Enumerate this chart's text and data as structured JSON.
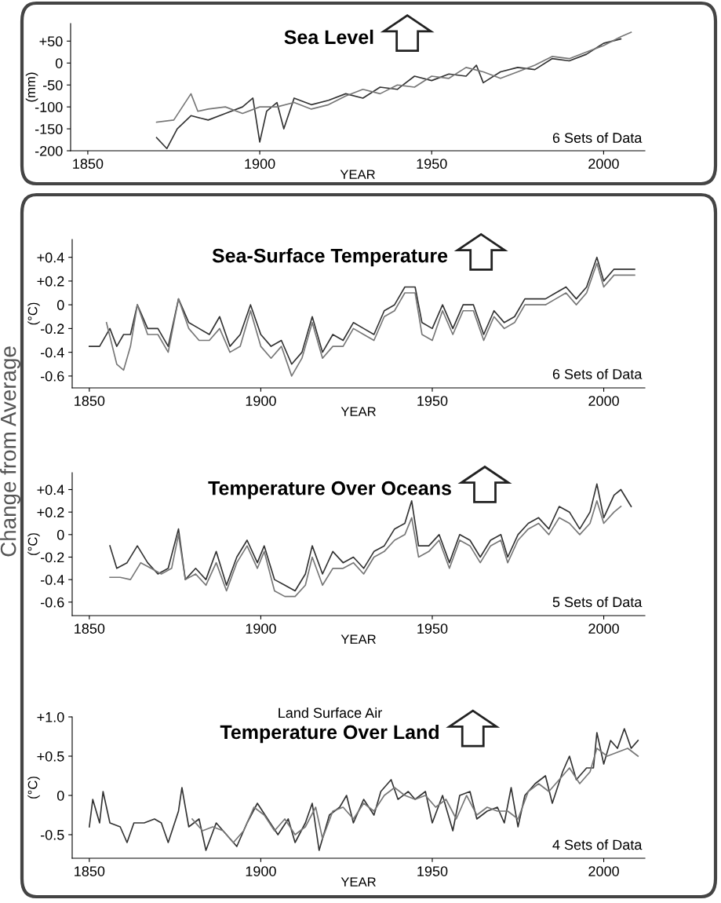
{
  "chart_data": [
    {
      "type": "line",
      "title": "Sea Level",
      "xlabel": "YEAR",
      "ylabel": "(mm)",
      "annotations": [
        "6 Sets of Data"
      ],
      "xlim": [
        1845,
        2012
      ],
      "xticks": [
        1850,
        1900,
        1950,
        2000
      ],
      "ylim": [
        -200,
        90
      ],
      "yticks": [
        {
          "value": 50,
          "label": "+50"
        },
        0,
        -50,
        -100,
        -150,
        -200
      ],
      "grid": false,
      "legend": false,
      "marker": "none",
      "line_style": "solid",
      "series": [
        {
          "color": "#333333",
          "x": [
            1870,
            1873,
            1876,
            1880,
            1885,
            1890,
            1895,
            1898,
            1900,
            1902,
            1905,
            1907,
            1910,
            1915,
            1920,
            1925,
            1930,
            1935,
            1940,
            1945,
            1950,
            1955,
            1960,
            1963,
            1965,
            1970,
            1975,
            1980,
            1985,
            1990,
            1995,
            2000,
            2005
          ],
          "values": [
            -170,
            -195,
            -150,
            -120,
            -130,
            -115,
            -100,
            -80,
            -180,
            -110,
            -90,
            -150,
            -80,
            -95,
            -85,
            -70,
            -80,
            -55,
            -60,
            -30,
            -40,
            -25,
            -30,
            -5,
            -45,
            -20,
            -10,
            -15,
            10,
            5,
            20,
            45,
            55
          ]
        },
        {
          "color": "#777777",
          "x": [
            1870,
            1875,
            1880,
            1882,
            1885,
            1890,
            1895,
            1900,
            1905,
            1910,
            1915,
            1920,
            1925,
            1930,
            1935,
            1940,
            1945,
            1950,
            1955,
            1960,
            1965,
            1970,
            1975,
            1980,
            1985,
            1990,
            1995,
            2000,
            2005,
            2008
          ],
          "values": [
            -135,
            -130,
            -70,
            -110,
            -105,
            -100,
            -115,
            -100,
            -100,
            -90,
            -105,
            -95,
            -75,
            -60,
            -70,
            -50,
            -55,
            -30,
            -35,
            -10,
            -20,
            -35,
            -20,
            -5,
            15,
            10,
            25,
            40,
            60,
            70
          ]
        }
      ]
    },
    {
      "type": "line",
      "title": "Sea-Surface Temperature",
      "xlabel": "YEAR",
      "ylabel": "(°C)",
      "annotations": [
        "6 Sets of Data",
        "Change from Average"
      ],
      "xlim": [
        1845,
        2012
      ],
      "xticks": [
        1850,
        1900,
        1950,
        2000
      ],
      "ylim": [
        -0.7,
        0.55
      ],
      "yticks": [
        {
          "value": 0.4,
          "label": "+0.4"
        },
        {
          "value": 0.2,
          "label": "+0.2"
        },
        0,
        -0.2,
        -0.4,
        -0.6
      ],
      "grid": false,
      "legend": false,
      "marker": "none",
      "line_style": "solid",
      "series": [
        {
          "color": "#333333",
          "x": [
            1850,
            1853,
            1856,
            1858,
            1860,
            1862,
            1864,
            1867,
            1870,
            1873,
            1876,
            1879,
            1882,
            1885,
            1888,
            1891,
            1894,
            1897,
            1900,
            1903,
            1906,
            1909,
            1912,
            1915,
            1918,
            1921,
            1924,
            1927,
            1930,
            1933,
            1936,
            1939,
            1942,
            1945,
            1947,
            1950,
            1953,
            1956,
            1959,
            1962,
            1965,
            1968,
            1971,
            1974,
            1977,
            1980,
            1983,
            1986,
            1989,
            1992,
            1995,
            1998,
            2000,
            2003,
            2006,
            2009
          ],
          "values": [
            -0.35,
            -0.35,
            -0.2,
            -0.35,
            -0.25,
            -0.25,
            0.0,
            -0.2,
            -0.2,
            -0.35,
            0.05,
            -0.15,
            -0.2,
            -0.25,
            -0.1,
            -0.35,
            -0.25,
            0.0,
            -0.25,
            -0.35,
            -0.3,
            -0.5,
            -0.4,
            -0.1,
            -0.4,
            -0.25,
            -0.3,
            -0.15,
            -0.2,
            -0.25,
            -0.05,
            0.0,
            0.15,
            0.15,
            -0.15,
            -0.2,
            0.0,
            -0.2,
            0.0,
            0.0,
            -0.25,
            -0.05,
            -0.15,
            -0.1,
            0.05,
            0.05,
            0.05,
            0.1,
            0.15,
            0.05,
            0.15,
            0.4,
            0.2,
            0.3,
            0.3,
            0.3
          ]
        },
        {
          "color": "#777777",
          "x": [
            1855,
            1858,
            1860,
            1862,
            1864,
            1867,
            1870,
            1873,
            1876,
            1879,
            1882,
            1885,
            1888,
            1891,
            1894,
            1897,
            1900,
            1903,
            1906,
            1909,
            1912,
            1915,
            1918,
            1921,
            1924,
            1927,
            1930,
            1933,
            1936,
            1939,
            1942,
            1945,
            1947,
            1950,
            1953,
            1956,
            1959,
            1962,
            1965,
            1968,
            1971,
            1974,
            1977,
            1980,
            1983,
            1986,
            1989,
            1992,
            1995,
            1998,
            2000,
            2003,
            2006,
            2009
          ],
          "values": [
            -0.15,
            -0.5,
            -0.55,
            -0.35,
            0.0,
            -0.25,
            -0.25,
            -0.4,
            0.05,
            -0.2,
            -0.3,
            -0.3,
            -0.2,
            -0.4,
            -0.35,
            -0.05,
            -0.35,
            -0.45,
            -0.35,
            -0.6,
            -0.45,
            -0.15,
            -0.45,
            -0.35,
            -0.35,
            -0.2,
            -0.25,
            -0.3,
            -0.1,
            -0.05,
            0.1,
            0.1,
            -0.25,
            -0.3,
            -0.05,
            -0.25,
            -0.05,
            -0.05,
            -0.3,
            -0.1,
            -0.2,
            -0.15,
            0.0,
            0.0,
            0.0,
            0.05,
            0.1,
            0.0,
            0.1,
            0.35,
            0.15,
            0.25,
            0.25,
            0.25
          ]
        }
      ]
    },
    {
      "type": "line",
      "title": "Temperature Over Oceans",
      "xlabel": "YEAR",
      "ylabel": "(°C)",
      "annotations": [
        "5 Sets of Data"
      ],
      "xlim": [
        1845,
        2012
      ],
      "xticks": [
        1850,
        1900,
        1950,
        2000
      ],
      "ylim": [
        -0.72,
        0.55
      ],
      "yticks": [
        {
          "value": 0.4,
          "label": "+0.4"
        },
        {
          "value": 0.2,
          "label": "+0.2"
        },
        0,
        -0.2,
        -0.4,
        -0.6
      ],
      "grid": false,
      "legend": false,
      "marker": "none",
      "line_style": "solid",
      "series": [
        {
          "color": "#333333",
          "x": [
            1856,
            1858,
            1861,
            1864,
            1867,
            1870,
            1873,
            1876,
            1878,
            1881,
            1884,
            1887,
            1890,
            1893,
            1896,
            1899,
            1901,
            1904,
            1907,
            1910,
            1913,
            1915,
            1918,
            1921,
            1924,
            1927,
            1930,
            1933,
            1936,
            1939,
            1942,
            1944,
            1946,
            1949,
            1952,
            1955,
            1958,
            1961,
            1964,
            1967,
            1970,
            1972,
            1975,
            1978,
            1981,
            1984,
            1987,
            1990,
            1993,
            1996,
            1998,
            2000,
            2003,
            2005,
            2008
          ],
          "values": [
            -0.1,
            -0.3,
            -0.25,
            -0.1,
            -0.25,
            -0.35,
            -0.3,
            0.05,
            -0.4,
            -0.3,
            -0.4,
            -0.15,
            -0.45,
            -0.2,
            -0.05,
            -0.25,
            -0.1,
            -0.4,
            -0.45,
            -0.5,
            -0.35,
            -0.1,
            -0.35,
            -0.15,
            -0.25,
            -0.2,
            -0.3,
            -0.15,
            -0.1,
            0.05,
            0.1,
            0.3,
            -0.1,
            -0.1,
            0.0,
            -0.25,
            0.0,
            -0.05,
            -0.2,
            -0.05,
            0.0,
            -0.2,
            0.0,
            0.1,
            0.15,
            0.05,
            0.25,
            0.2,
            0.05,
            0.2,
            0.45,
            0.15,
            0.35,
            0.4,
            0.25
          ]
        },
        {
          "color": "#777777",
          "x": [
            1856,
            1859,
            1862,
            1865,
            1868,
            1871,
            1874,
            1876,
            1878,
            1881,
            1884,
            1887,
            1890,
            1893,
            1896,
            1899,
            1901,
            1904,
            1907,
            1910,
            1913,
            1915,
            1918,
            1921,
            1924,
            1927,
            1930,
            1933,
            1936,
            1939,
            1942,
            1944,
            1946,
            1949,
            1952,
            1955,
            1958,
            1961,
            1964,
            1967,
            1970,
            1972,
            1975,
            1978,
            1981,
            1984,
            1987,
            1990,
            1993,
            1996,
            1998,
            2000,
            2003,
            2005
          ],
          "values": [
            -0.38,
            -0.38,
            -0.4,
            -0.25,
            -0.3,
            -0.35,
            -0.3,
            0.0,
            -0.4,
            -0.35,
            -0.45,
            -0.25,
            -0.5,
            -0.25,
            -0.1,
            -0.3,
            -0.15,
            -0.5,
            -0.55,
            -0.55,
            -0.45,
            -0.2,
            -0.45,
            -0.3,
            -0.3,
            -0.25,
            -0.35,
            -0.2,
            -0.15,
            -0.05,
            0.0,
            0.15,
            -0.2,
            -0.15,
            -0.05,
            -0.3,
            -0.05,
            -0.1,
            -0.25,
            -0.1,
            -0.05,
            -0.25,
            -0.05,
            0.05,
            0.1,
            0.0,
            0.15,
            0.1,
            0.0,
            0.1,
            0.3,
            0.1,
            0.2,
            0.25
          ]
        }
      ]
    },
    {
      "type": "line",
      "subtitle": "Land Surface Air",
      "title": "Temperature Over Land",
      "xlabel": "YEAR",
      "ylabel": "(°C)",
      "annotations": [
        "4 Sets of Data"
      ],
      "xlim": [
        1845,
        2012
      ],
      "xticks": [
        1850,
        1900,
        1950,
        2000
      ],
      "ylim": [
        -0.8,
        1.0
      ],
      "yticks": [
        {
          "value": 1.0,
          "label": "+1.0"
        },
        {
          "value": 0.5,
          "label": "+0.5"
        },
        0,
        -0.5
      ],
      "grid": false,
      "legend": false,
      "marker": "none",
      "line_style": "solid",
      "series": [
        {
          "color": "#333333",
          "x": [
            1850,
            1851,
            1853,
            1854,
            1856,
            1859,
            1861,
            1863,
            1866,
            1869,
            1871,
            1873,
            1876,
            1877,
            1879,
            1882,
            1884,
            1887,
            1890,
            1893,
            1896,
            1899,
            1902,
            1905,
            1908,
            1910,
            1913,
            1915,
            1917,
            1920,
            1923,
            1925,
            1927,
            1930,
            1933,
            1935,
            1938,
            1940,
            1943,
            1945,
            1948,
            1950,
            1953,
            1956,
            1958,
            1961,
            1963,
            1966,
            1969,
            1971,
            1973,
            1975,
            1977,
            1980,
            1983,
            1985,
            1988,
            1990,
            1992,
            1995,
            1997,
            1998,
            2000,
            2002,
            2004,
            2006,
            2008,
            2010
          ],
          "values": [
            -0.4,
            -0.05,
            -0.35,
            0.05,
            -0.35,
            -0.4,
            -0.6,
            -0.35,
            -0.35,
            -0.3,
            -0.35,
            -0.6,
            -0.2,
            0.1,
            -0.4,
            -0.3,
            -0.7,
            -0.35,
            -0.5,
            -0.65,
            -0.35,
            -0.1,
            -0.3,
            -0.5,
            -0.3,
            -0.6,
            -0.35,
            -0.1,
            -0.7,
            -0.25,
            -0.15,
            0.0,
            -0.35,
            -0.05,
            -0.25,
            0.05,
            0.2,
            -0.05,
            0.05,
            -0.05,
            0.05,
            -0.35,
            0.0,
            -0.45,
            0.0,
            0.05,
            -0.3,
            -0.2,
            -0.15,
            -0.35,
            0.1,
            -0.4,
            0.0,
            0.15,
            0.25,
            -0.1,
            0.3,
            0.5,
            0.2,
            0.35,
            0.35,
            0.8,
            0.4,
            0.7,
            0.6,
            0.85,
            0.6,
            0.7
          ]
        },
        {
          "color": "#777777",
          "x": [
            1880,
            1883,
            1886,
            1889,
            1892,
            1895,
            1898,
            1901,
            1904,
            1907,
            1910,
            1913,
            1916,
            1918,
            1921,
            1924,
            1927,
            1930,
            1933,
            1936,
            1939,
            1942,
            1945,
            1948,
            1951,
            1954,
            1957,
            1960,
            1963,
            1966,
            1969,
            1972,
            1975,
            1978,
            1981,
            1984,
            1987,
            1990,
            1993,
            1996,
            1998,
            2001,
            2004,
            2007,
            2010
          ],
          "values": [
            -0.3,
            -0.45,
            -0.4,
            -0.45,
            -0.6,
            -0.45,
            -0.15,
            -0.25,
            -0.45,
            -0.3,
            -0.5,
            -0.4,
            -0.15,
            -0.55,
            -0.2,
            -0.15,
            -0.3,
            -0.1,
            -0.2,
            0.0,
            0.1,
            0.0,
            -0.05,
            0.0,
            -0.15,
            -0.05,
            -0.3,
            0.0,
            -0.25,
            -0.15,
            -0.2,
            -0.2,
            -0.3,
            0.05,
            0.15,
            0.05,
            0.2,
            0.35,
            0.15,
            0.3,
            0.6,
            0.5,
            0.55,
            0.6,
            0.5
          ]
        }
      ]
    }
  ]
}
